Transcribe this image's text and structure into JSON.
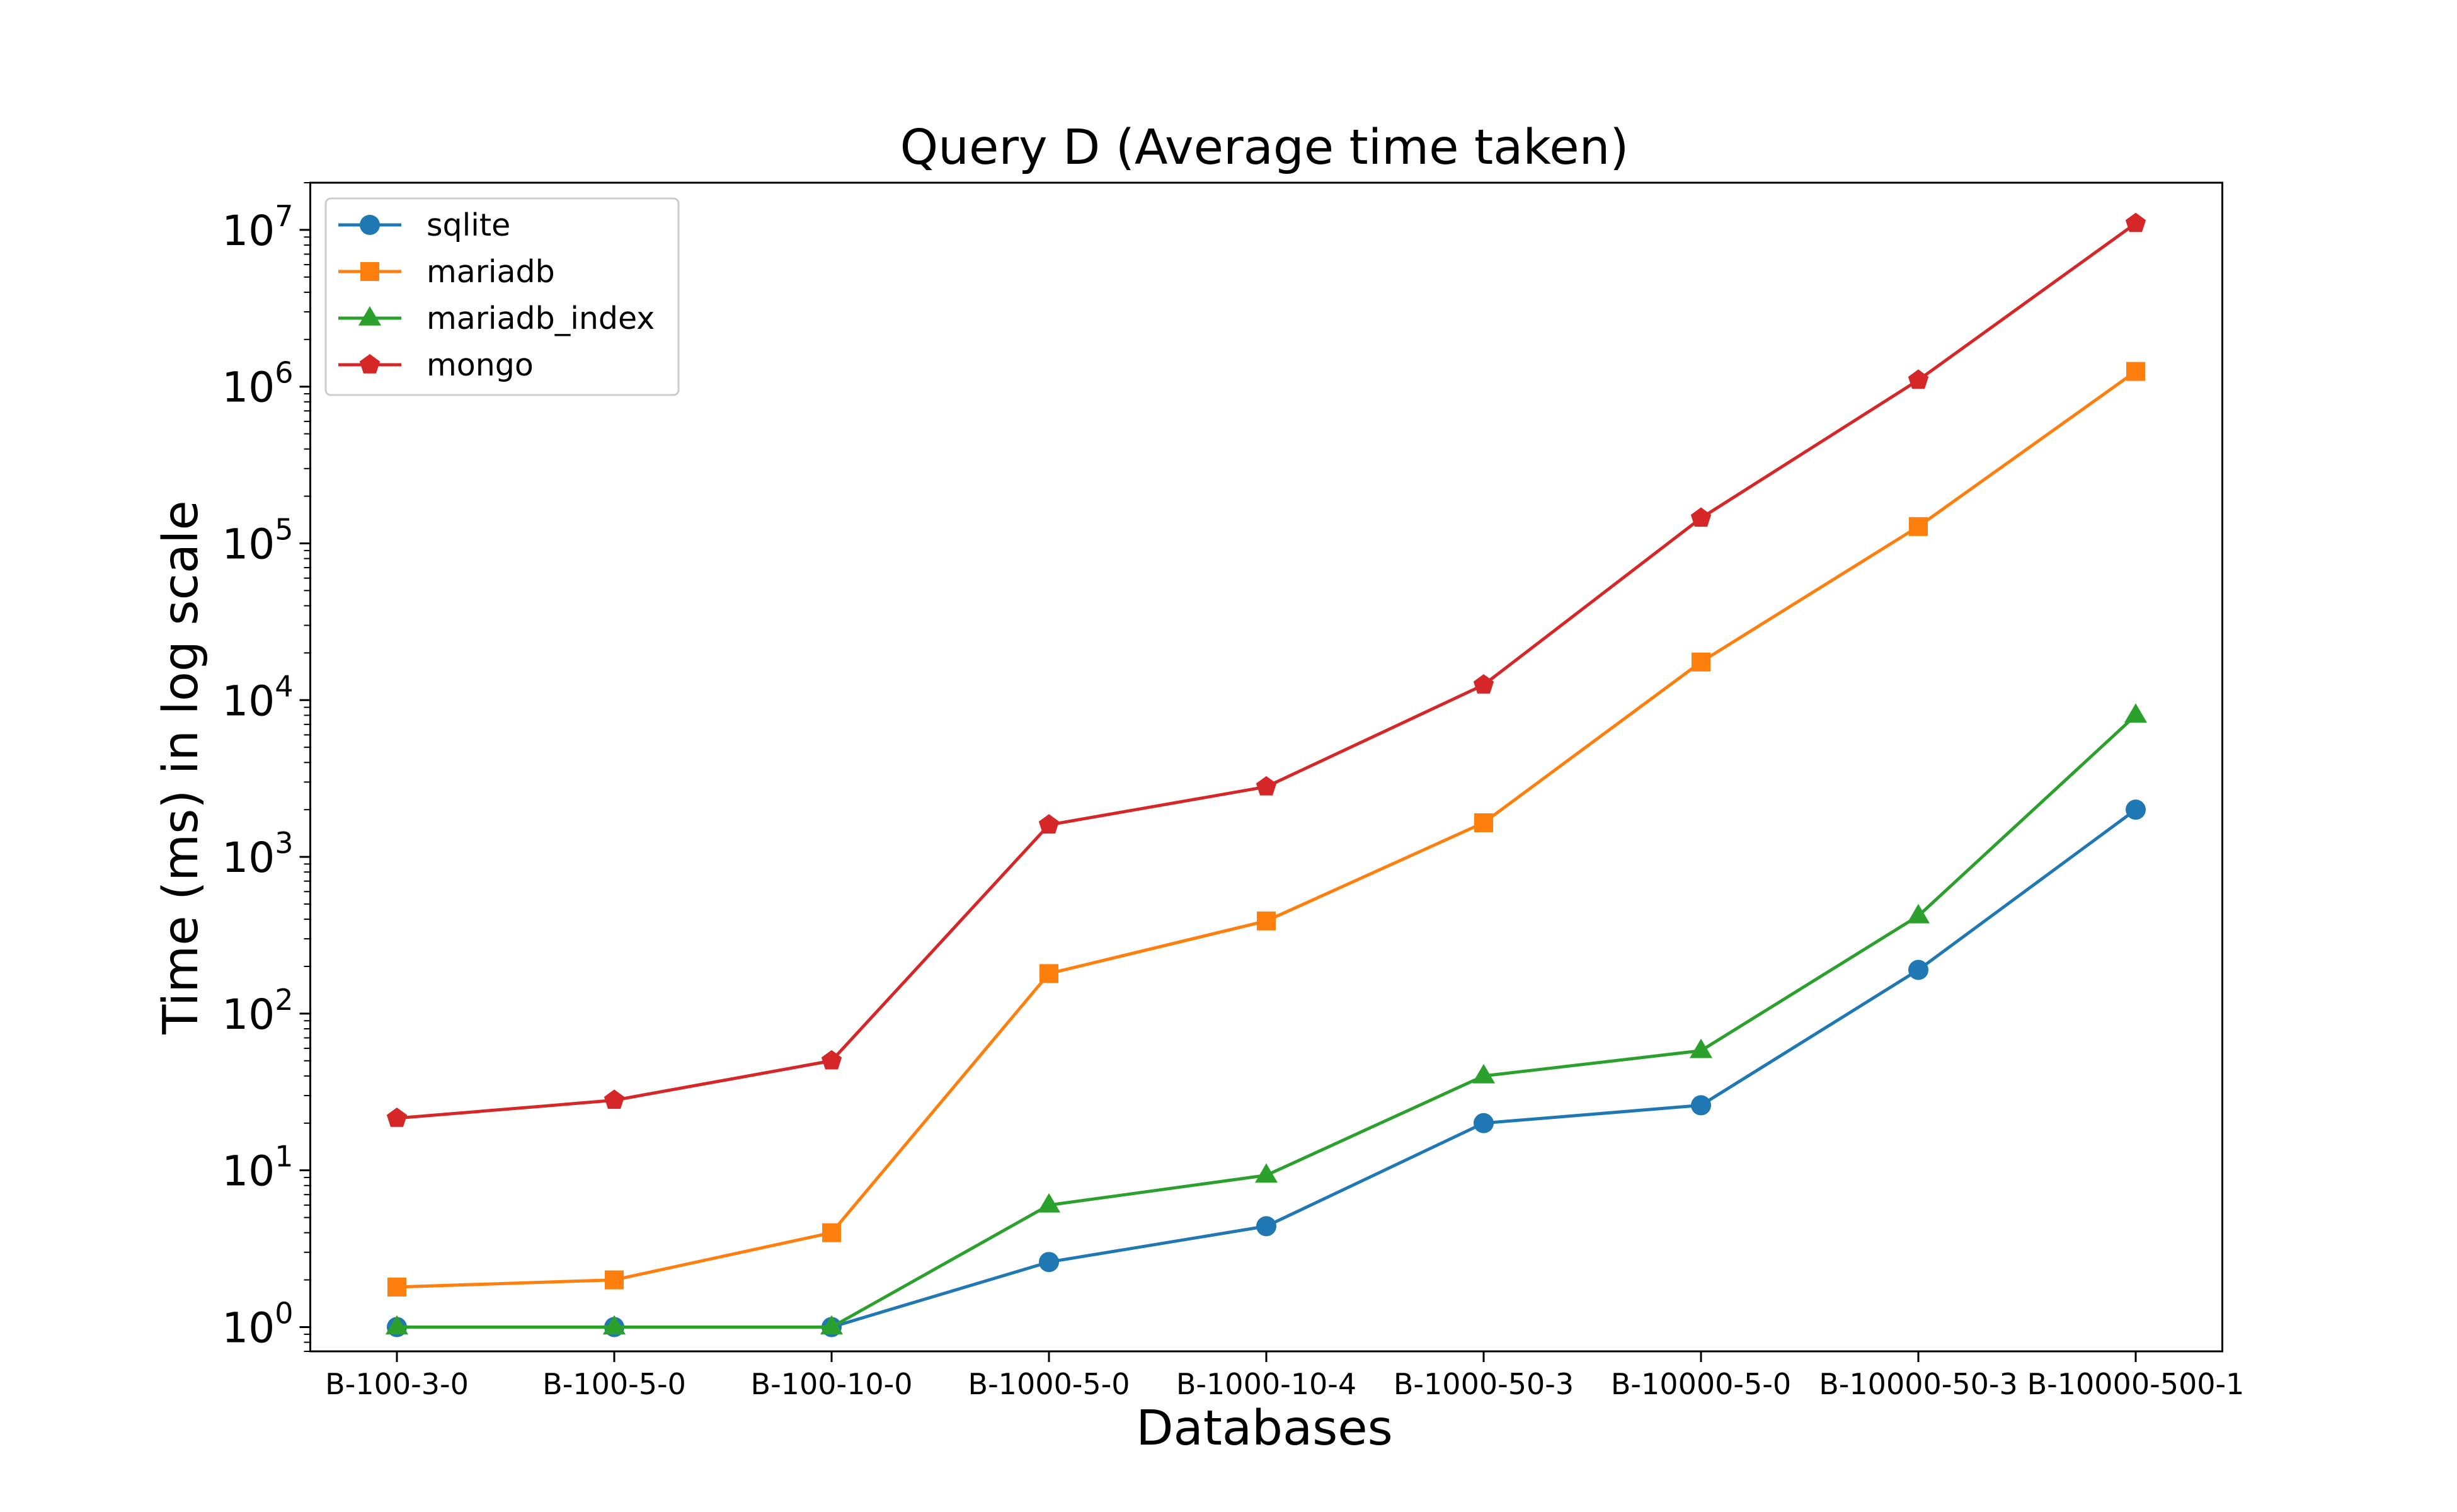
{
  "chart_data": {
    "type": "line",
    "title": "Query D (Average time taken)",
    "xlabel": "Databases",
    "ylabel": "Time (ms) in log scale",
    "yscale": "log",
    "ylim": [
      0.7,
      20000000
    ],
    "yticks": [
      1,
      10,
      100,
      1000,
      10000,
      100000,
      1000000,
      10000000
    ],
    "ytick_labels": [
      {
        "base": "10",
        "exp": "0"
      },
      {
        "base": "10",
        "exp": "1"
      },
      {
        "base": "10",
        "exp": "2"
      },
      {
        "base": "10",
        "exp": "3"
      },
      {
        "base": "10",
        "exp": "4"
      },
      {
        "base": "10",
        "exp": "5"
      },
      {
        "base": "10",
        "exp": "6"
      },
      {
        "base": "10",
        "exp": "7"
      }
    ],
    "categories": [
      "B-100-3-0",
      "B-100-5-0",
      "B-100-10-0",
      "B-1000-5-0",
      "B-1000-10-4",
      "B-1000-50-3",
      "B-10000-5-0",
      "B-10000-50-3",
      "B-10000-500-1"
    ],
    "grid": false,
    "legend_position": "top-left",
    "series": [
      {
        "name": "sqlite",
        "color": "#1f77b4",
        "marker": "circle",
        "values": [
          1,
          1,
          1,
          2.6,
          4.4,
          20,
          26,
          190,
          2000
        ]
      },
      {
        "name": "mariadb",
        "color": "#ff7f0e",
        "marker": "square",
        "values": [
          1.8,
          2.0,
          4.0,
          180,
          390,
          1650,
          17500,
          128000,
          1250000
        ]
      },
      {
        "name": "mariadb_index",
        "color": "#2ca02c",
        "marker": "triangle",
        "values": [
          1,
          1,
          1,
          6.0,
          9.3,
          40,
          58,
          420,
          8000
        ]
      },
      {
        "name": "mongo",
        "color": "#d62728",
        "marker": "pentagon",
        "values": [
          21.5,
          28,
          50,
          1600,
          2800,
          12500,
          145000,
          1100000,
          11000000
        ]
      }
    ]
  }
}
